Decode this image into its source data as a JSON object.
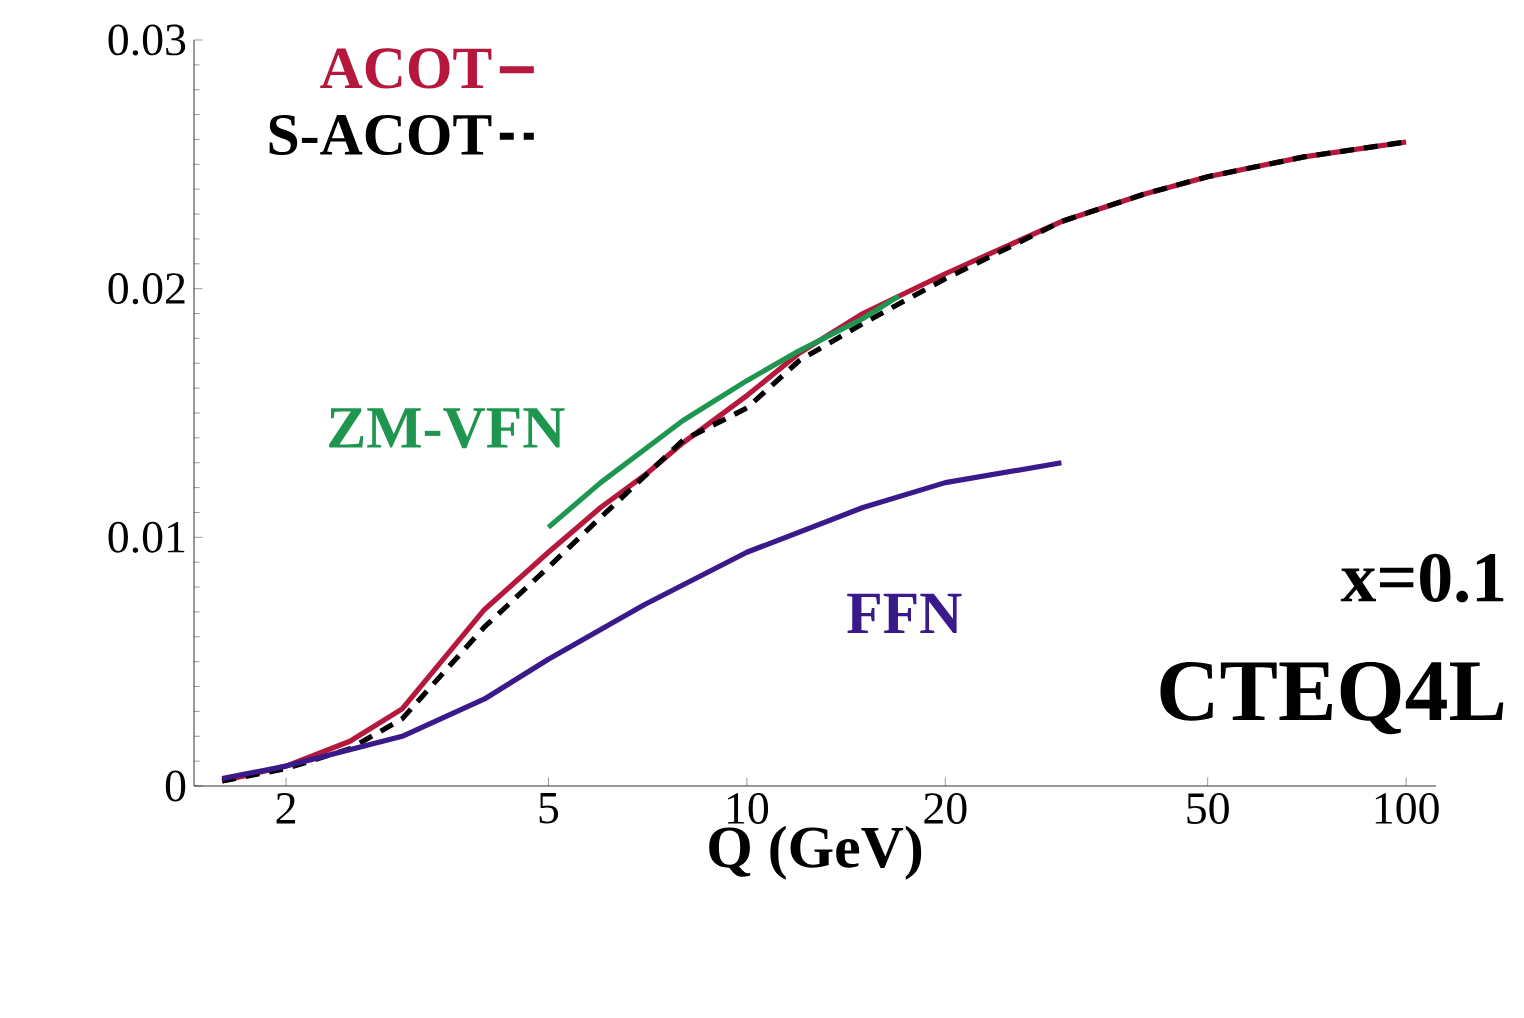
{
  "chart_data": {
    "type": "line",
    "xlabel": "Q  (GeV)",
    "log": "x",
    "xlim": [
      1.45,
      111
    ],
    "ylim": [
      0,
      0.03
    ],
    "xticks": [
      2,
      5,
      10,
      20,
      50,
      100
    ],
    "yticks": [
      0,
      0.01,
      0.02,
      0.03
    ],
    "legend": "top left",
    "marker": "none",
    "series": [
      {
        "name": "ACOT",
        "color": "#b5173d",
        "line_style": "solid",
        "x": [
          1.6,
          2,
          2.5,
          3,
          4,
          5,
          6,
          7,
          8,
          10,
          12,
          15,
          20,
          30,
          40,
          50,
          70,
          100
        ],
        "values": [
          0.0002,
          0.0008,
          0.0018,
          0.0031,
          0.0071,
          0.0094,
          0.0112,
          0.0125,
          0.0138,
          0.0157,
          0.0174,
          0.019,
          0.0206,
          0.0227,
          0.0238,
          0.0245,
          0.0253,
          0.0259
        ]
      },
      {
        "name": "S-ACOT",
        "color": "#000000",
        "line_style": "dashed",
        "x": [
          1.6,
          2,
          2.5,
          3,
          4,
          5,
          6,
          8,
          10,
          12,
          15,
          20,
          30,
          40,
          50,
          70,
          100
        ],
        "values": [
          0.0002,
          0.0007,
          0.0015,
          0.0027,
          0.0064,
          0.0088,
          0.0108,
          0.0139,
          0.0152,
          0.0171,
          0.0186,
          0.0204,
          0.0227,
          0.0238,
          0.0245,
          0.0253,
          0.0259
        ]
      },
      {
        "name": "ZM-VFN",
        "color": "#1e9650",
        "line_style": "solid",
        "x": [
          5,
          6,
          8,
          10,
          12,
          15,
          17
        ],
        "values": [
          0.0104,
          0.0122,
          0.0147,
          0.0163,
          0.0175,
          0.0188,
          0.0197
        ]
      },
      {
        "name": "FFN",
        "color": "#3a1a8a",
        "line_style": "solid",
        "x": [
          1.6,
          2,
          3,
          4,
          5,
          7,
          10,
          15,
          20,
          30
        ],
        "values": [
          0.0003,
          0.0008,
          0.002,
          0.0035,
          0.0051,
          0.0073,
          0.0094,
          0.0112,
          0.0122,
          0.013
        ]
      }
    ],
    "annotations": [
      "x=0.1",
      "CTEQ4L"
    ]
  }
}
